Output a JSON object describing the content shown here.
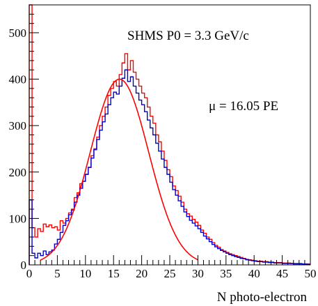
{
  "chart_data": {
    "type": "histogram",
    "title": "",
    "xlabel": "N photo-electron",
    "ylabel": "",
    "xlim": [
      0,
      50
    ],
    "ylim": [
      0,
      560
    ],
    "xticks": [
      "0",
      "5",
      "10",
      "15",
      "20",
      "25",
      "30",
      "35",
      "40",
      "45",
      "50"
    ],
    "yticks": [
      "0",
      "100",
      "200",
      "300",
      "400",
      "500"
    ],
    "grid": false,
    "legend": "none",
    "annotations": [
      "SHMS P0 = 3.3 GeV/c",
      "μ = 16.05 PE"
    ],
    "bin_width": 0.5,
    "series": [
      {
        "color": "#ff0000",
        "style": "step",
        "values": [
          560,
          80,
          60,
          78,
          72,
          88,
          82,
          86,
          80,
          82,
          75,
          95,
          90,
          100,
          112,
          120,
          145,
          155,
          175,
          180,
          195,
          210,
          235,
          250,
          275,
          300,
          320,
          340,
          365,
          380,
          395,
          385,
          410,
          435,
          455,
          420,
          440,
          415,
          400,
          385,
          370,
          360,
          340,
          320,
          305,
          280,
          265,
          245,
          225,
          205,
          190,
          170,
          160,
          148,
          135,
          120,
          110,
          105,
          98,
          92,
          85,
          75,
          68,
          60,
          55,
          48,
          42,
          38,
          33,
          30,
          27,
          24,
          22,
          20,
          18,
          16,
          14,
          12,
          11,
          10,
          9,
          8,
          8,
          7,
          7,
          6,
          6,
          5,
          5,
          5,
          4,
          4,
          4,
          3,
          3,
          3,
          3,
          2,
          2,
          2
        ]
      },
      {
        "color": "#0000cc",
        "style": "step",
        "values": [
          140,
          25,
          15,
          25,
          20,
          30,
          22,
          28,
          32,
          45,
          55,
          70,
          85,
          95,
          108,
          118,
          135,
          150,
          165,
          180,
          195,
          210,
          230,
          248,
          270,
          290,
          308,
          325,
          345,
          360,
          372,
          368,
          385,
          402,
          420,
          395,
          405,
          385,
          370,
          355,
          345,
          330,
          312,
          295,
          280,
          262,
          245,
          228,
          210,
          195,
          178,
          162,
          150,
          138,
          126,
          114,
          104,
          96,
          90,
          84,
          78,
          70,
          62,
          56,
          50,
          44,
          39,
          35,
          31,
          28,
          25,
          22,
          20,
          18,
          16,
          14,
          13,
          11,
          10,
          9,
          8,
          7,
          7,
          6,
          6,
          5,
          5,
          4,
          4,
          4,
          3,
          3,
          3,
          3,
          2,
          2,
          2,
          2,
          2,
          1
        ]
      },
      {
        "color": "#ff0000",
        "style": "curve",
        "fit": "gaussian",
        "amplitude": 400,
        "mean": 16.05,
        "sigma": 5.2,
        "range": [
          2,
          30
        ]
      }
    ]
  }
}
